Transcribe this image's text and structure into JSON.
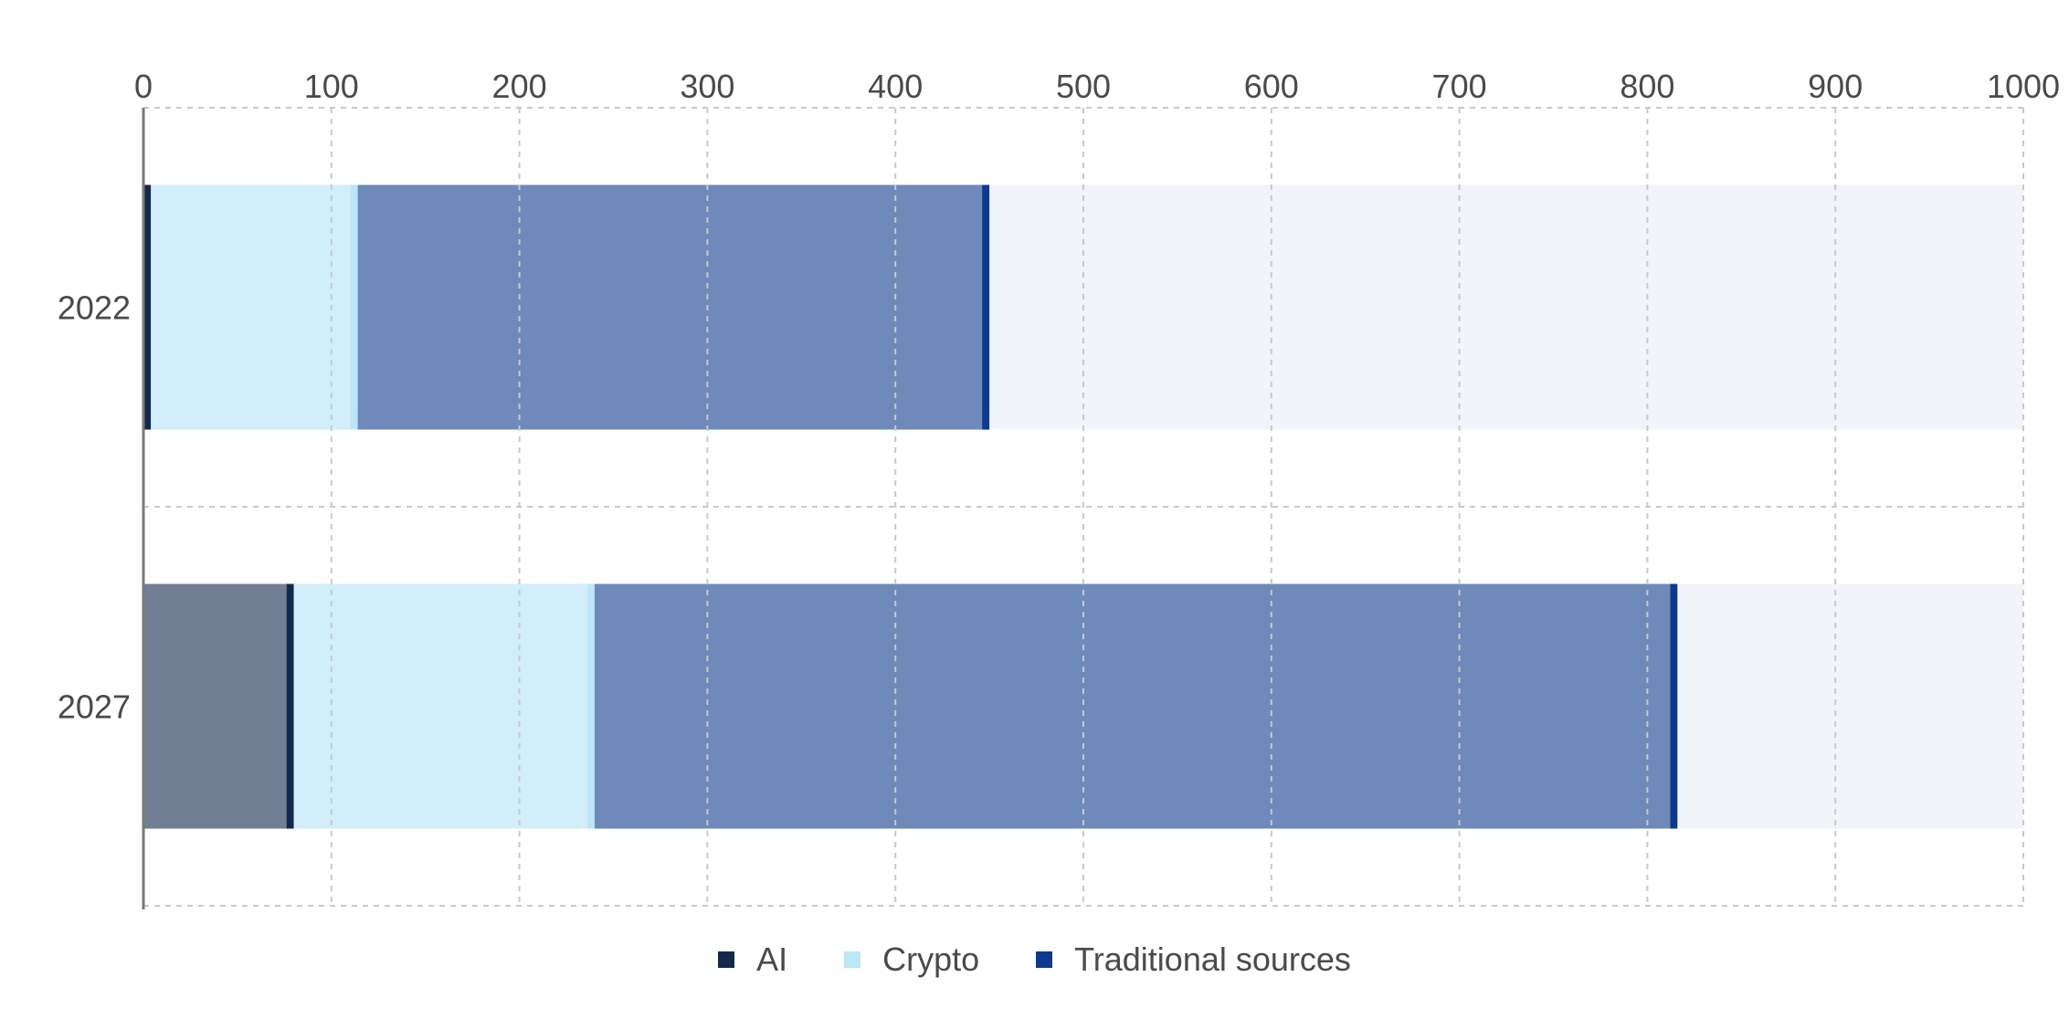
{
  "chart_data": {
    "type": "bar",
    "orientation": "horizontal",
    "stacked": true,
    "categories": [
      "2022",
      "2027"
    ],
    "xlim": [
      0,
      1000
    ],
    "x_ticks": [
      0,
      100,
      200,
      300,
      400,
      500,
      600,
      700,
      800,
      900,
      1000
    ],
    "x_axis_position": "top",
    "grid": true,
    "legend_position": "bottom-center",
    "series": [
      {
        "name": "AI",
        "color": "#13284b",
        "values": [
          4,
          80
        ]
      },
      {
        "name": "Crypto",
        "color": "#bde6f8",
        "values": [
          110,
          160
        ]
      },
      {
        "name": "Traditional sources",
        "color": "#0f3a8c",
        "values": [
          336,
          576
        ]
      }
    ]
  }
}
